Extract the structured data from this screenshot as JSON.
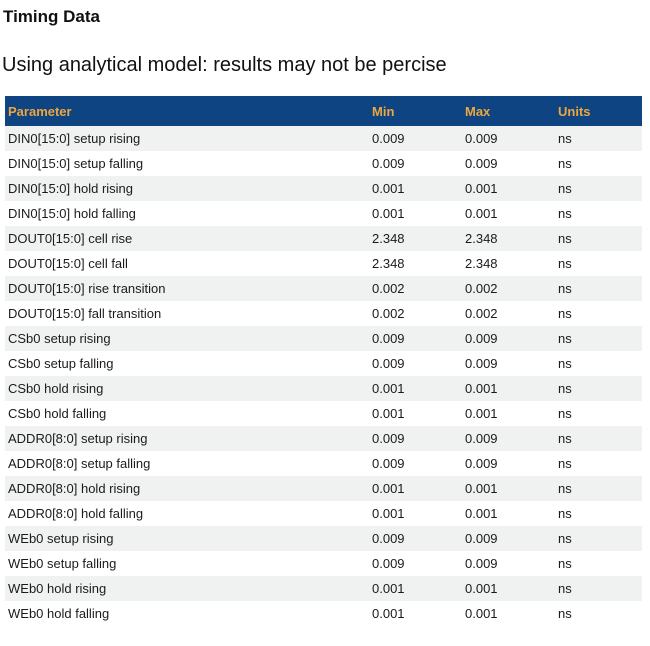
{
  "page": {
    "title": "Timing Data",
    "subtitle": "Using analytical model: results may not be percise"
  },
  "table": {
    "columns": {
      "parameter": "Parameter",
      "min": "Min",
      "max": "Max",
      "units": "Units"
    },
    "rows": [
      {
        "parameter": "DIN0[15:0] setup rising",
        "min": "0.009",
        "max": "0.009",
        "units": "ns"
      },
      {
        "parameter": "DIN0[15:0] setup falling",
        "min": "0.009",
        "max": "0.009",
        "units": "ns"
      },
      {
        "parameter": "DIN0[15:0] hold rising",
        "min": "0.001",
        "max": "0.001",
        "units": "ns"
      },
      {
        "parameter": "DIN0[15:0] hold falling",
        "min": "0.001",
        "max": "0.001",
        "units": "ns"
      },
      {
        "parameter": "DOUT0[15:0] cell rise",
        "min": "2.348",
        "max": "2.348",
        "units": "ns"
      },
      {
        "parameter": "DOUT0[15:0] cell fall",
        "min": "2.348",
        "max": "2.348",
        "units": "ns"
      },
      {
        "parameter": "DOUT0[15:0] rise transition",
        "min": "0.002",
        "max": "0.002",
        "units": "ns"
      },
      {
        "parameter": "DOUT0[15:0] fall transition",
        "min": "0.002",
        "max": "0.002",
        "units": "ns"
      },
      {
        "parameter": "CSb0 setup rising",
        "min": "0.009",
        "max": "0.009",
        "units": "ns"
      },
      {
        "parameter": "CSb0 setup falling",
        "min": "0.009",
        "max": "0.009",
        "units": "ns"
      },
      {
        "parameter": "CSb0 hold rising",
        "min": "0.001",
        "max": "0.001",
        "units": "ns"
      },
      {
        "parameter": "CSb0 hold falling",
        "min": "0.001",
        "max": "0.001",
        "units": "ns"
      },
      {
        "parameter": "ADDR0[8:0] setup rising",
        "min": "0.009",
        "max": "0.009",
        "units": "ns"
      },
      {
        "parameter": "ADDR0[8:0] setup falling",
        "min": "0.009",
        "max": "0.009",
        "units": "ns"
      },
      {
        "parameter": "ADDR0[8:0] hold rising",
        "min": "0.001",
        "max": "0.001",
        "units": "ns"
      },
      {
        "parameter": "ADDR0[8:0] hold falling",
        "min": "0.001",
        "max": "0.001",
        "units": "ns"
      },
      {
        "parameter": "WEb0 setup rising",
        "min": "0.009",
        "max": "0.009",
        "units": "ns"
      },
      {
        "parameter": "WEb0 setup falling",
        "min": "0.009",
        "max": "0.009",
        "units": "ns"
      },
      {
        "parameter": "WEb0 hold rising",
        "min": "0.001",
        "max": "0.001",
        "units": "ns"
      },
      {
        "parameter": "WEb0 hold falling",
        "min": "0.001",
        "max": "0.001",
        "units": "ns"
      }
    ]
  },
  "colors": {
    "header_bg": "#0D4481",
    "header_text": "#EEA63E",
    "row_alt_bg": "#F0F1F1",
    "body_text": "#1B1B1B"
  }
}
